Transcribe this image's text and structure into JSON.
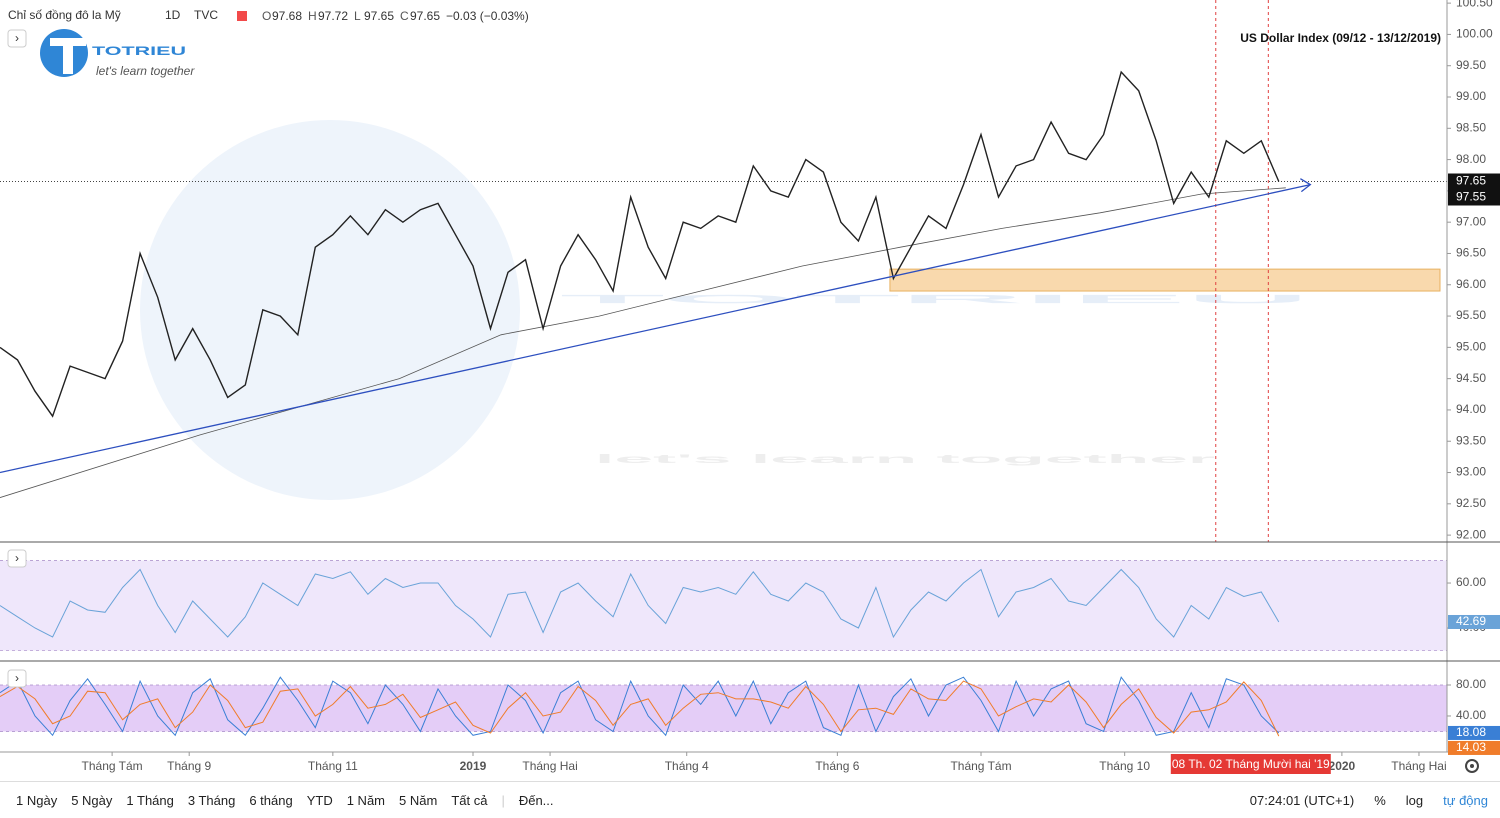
{
  "header": {
    "symbol": "Chỉ số đồng đô la Mỹ",
    "interval": "1D",
    "source": "TVC",
    "ohlc": [
      {
        "label": "O",
        "value": 97.68
      },
      {
        "label": "H",
        "value": 97.72
      },
      {
        "label": "L",
        "value": 97.65
      },
      {
        "label": "C",
        "value": 97.65
      }
    ],
    "change": "−0.03 (−0.03%)"
  },
  "logo": {
    "name": "TOTRIEU",
    "tagline": "let's learn together"
  },
  "chart_data": [
    {
      "type": "line",
      "title": "US Dollar Index (09/12 - 13/12/2019)",
      "xlim": [
        0,
        413
      ],
      "ylim": [
        91.89,
        100.55
      ],
      "xticks": [
        {
          "value": 32,
          "label": "Tháng Tám"
        },
        {
          "value": 54,
          "label": "Tháng 9"
        },
        {
          "value": 95,
          "label": "Tháng 11"
        },
        {
          "value": 135,
          "label": "2019"
        },
        {
          "value": 157,
          "label": "Tháng Hai"
        },
        {
          "value": 196,
          "label": "Tháng 4"
        },
        {
          "value": 239,
          "label": "Tháng 6"
        },
        {
          "value": 280,
          "label": "Tháng Tám"
        },
        {
          "value": 321,
          "label": "Tháng 10"
        },
        {
          "value": 383,
          "label": "2020"
        },
        {
          "value": 405,
          "label": "Tháng Hai"
        }
      ],
      "yticks": [
        {
          "value": 92,
          "label": "92.00"
        },
        {
          "value": 92.5,
          "label": "92.50"
        },
        {
          "value": 93,
          "label": "93.00"
        },
        {
          "value": 93.5,
          "label": "93.50"
        },
        {
          "value": 94,
          "label": "94.00"
        },
        {
          "value": 94.5,
          "label": "94.50"
        },
        {
          "value": 95,
          "label": "95.00"
        },
        {
          "value": 95.5,
          "label": "95.50"
        },
        {
          "value": 96,
          "label": "96.00"
        },
        {
          "value": 96.5,
          "label": "96.50"
        },
        {
          "value": 97,
          "label": "97.00"
        },
        {
          "value": 97.5,
          "label": "97.50"
        },
        {
          "value": 98,
          "label": "98.00"
        },
        {
          "value": 98.5,
          "label": "98.50"
        },
        {
          "value": 99,
          "label": "99.00"
        },
        {
          "value": 99.5,
          "label": "99.50"
        },
        {
          "value": 100,
          "label": "100.00"
        },
        {
          "value": 100.5,
          "label": "100.50"
        }
      ],
      "x": [
        0,
        5,
        10,
        15,
        20,
        25,
        30,
        35,
        40,
        45,
        50,
        55,
        60,
        65,
        70,
        75,
        80,
        85,
        90,
        95,
        100,
        105,
        110,
        115,
        120,
        125,
        130,
        135,
        140,
        145,
        150,
        155,
        160,
        165,
        170,
        175,
        180,
        185,
        190,
        195,
        200,
        205,
        210,
        215,
        220,
        225,
        230,
        235,
        240,
        245,
        250,
        255,
        260,
        265,
        270,
        275,
        280,
        285,
        290,
        295,
        300,
        305,
        310,
        315,
        320,
        325,
        330,
        335,
        340,
        345,
        350,
        355,
        360,
        365
      ],
      "price": {
        "color": "#222222",
        "values": [
          95.0,
          94.8,
          94.3,
          93.9,
          94.7,
          94.6,
          94.5,
          95.1,
          96.5,
          95.8,
          94.8,
          95.3,
          94.8,
          94.2,
          94.4,
          95.6,
          95.5,
          95.2,
          96.6,
          96.8,
          97.1,
          96.8,
          97.2,
          97.0,
          97.2,
          97.3,
          96.8,
          96.3,
          95.3,
          96.2,
          96.4,
          95.3,
          96.3,
          96.8,
          96.4,
          95.9,
          97.4,
          96.6,
          96.1,
          97.0,
          96.9,
          97.1,
          97.0,
          97.9,
          97.5,
          97.4,
          98.0,
          97.8,
          97.0,
          96.7,
          97.4,
          96.1,
          96.6,
          97.1,
          96.9,
          97.6,
          98.4,
          97.4,
          97.9,
          98.0,
          98.6,
          98.1,
          98.0,
          98.4,
          99.4,
          99.1,
          98.3,
          97.3,
          97.8,
          97.4,
          98.3,
          98.1,
          98.3,
          97.65
        ]
      },
      "ma": {
        "color": "#555555",
        "x": [
          0,
          57,
          114,
          143,
          171,
          229,
          257,
          286,
          314,
          343,
          367
        ],
        "values": [
          92.6,
          93.6,
          94.5,
          95.2,
          95.5,
          96.3,
          96.6,
          96.9,
          97.15,
          97.45,
          97.55
        ]
      },
      "trend": {
        "color": "#2d4fbf",
        "x": [
          0,
          374
        ],
        "values": [
          93.0,
          97.6
        ]
      },
      "zone": {
        "color": "#f7c98a",
        "x": [
          254,
          411
        ],
        "values": [
          95.9,
          96.25
        ]
      },
      "last_price": {
        "value": 97.65,
        "label": "97.65"
      },
      "ma_label": {
        "value": 97.55,
        "label": "97.55"
      },
      "markers": [
        347,
        362
      ],
      "cursor": {
        "x": 357,
        "label": "08 Th. 02 Tháng Mười hai '19"
      }
    },
    {
      "type": "line",
      "ylim": [
        25.8,
        76.9
      ],
      "yticks": [
        {
          "value": 40,
          "label": "40.00"
        },
        {
          "value": 60,
          "label": "60.00"
        }
      ],
      "band": [
        30,
        70
      ],
      "band_color": "#efe7fb",
      "color": "#6aa3d8",
      "values": [
        50,
        45,
        40,
        36,
        52,
        48,
        47,
        58,
        66,
        50,
        38,
        52,
        44,
        36,
        45,
        60,
        55,
        50,
        64,
        62,
        65,
        55,
        62,
        58,
        60,
        60,
        50,
        44,
        36,
        55,
        56,
        38,
        56,
        60,
        52,
        45,
        64,
        50,
        42,
        58,
        56,
        58,
        55,
        65,
        55,
        52,
        60,
        56,
        44,
        40,
        58,
        36,
        48,
        56,
        52,
        60,
        66,
        45,
        56,
        58,
        62,
        52,
        50,
        58,
        66,
        58,
        44,
        36,
        50,
        44,
        58,
        54,
        56,
        42.69
      ],
      "last": {
        "value": 42.69,
        "label": "42.69"
      }
    },
    {
      "type": "line",
      "ylim": [
        -6.5,
        105.8
      ],
      "yticks": [
        {
          "value": 40,
          "label": "40.00"
        },
        {
          "value": 80,
          "label": "80.00"
        }
      ],
      "band": [
        20,
        80
      ],
      "band_color": "#e4cdf7",
      "series": [
        {
          "color": "#3a7fd5",
          "values": [
            70,
            85,
            40,
            15,
            60,
            88,
            55,
            20,
            85,
            40,
            15,
            70,
            88,
            35,
            15,
            50,
            90,
            60,
            25,
            85,
            70,
            30,
            80,
            55,
            20,
            75,
            40,
            15,
            20,
            80,
            60,
            18,
            70,
            85,
            35,
            20,
            85,
            40,
            15,
            80,
            55,
            85,
            40,
            85,
            30,
            70,
            85,
            25,
            15,
            80,
            20,
            65,
            88,
            40,
            80,
            90,
            60,
            20,
            85,
            40,
            75,
            85,
            30,
            20,
            90,
            60,
            15,
            20,
            70,
            25,
            88,
            80,
            40,
            18.08
          ],
          "last": {
            "value": 18.08,
            "label": "18.08"
          }
        },
        {
          "color": "#f07c2a",
          "values": [
            65,
            78,
            62,
            30,
            40,
            72,
            70,
            35,
            55,
            62,
            25,
            45,
            80,
            60,
            25,
            32,
            72,
            75,
            40,
            55,
            78,
            50,
            55,
            68,
            38,
            48,
            58,
            28,
            18,
            50,
            70,
            40,
            45,
            78,
            60,
            28,
            55,
            62,
            28,
            50,
            68,
            70,
            62,
            62,
            58,
            50,
            78,
            55,
            20,
            48,
            50,
            42,
            75,
            62,
            60,
            85,
            75,
            40,
            52,
            62,
            58,
            80,
            58,
            25,
            55,
            75,
            38,
            18,
            45,
            48,
            58,
            84,
            60,
            14.03
          ],
          "last": {
            "value": 14.03,
            "label": "14.03"
          }
        }
      ]
    }
  ],
  "toolbar": {
    "ranges": [
      "1 Ngày",
      "5 Ngày",
      "1 Tháng",
      "3 Tháng",
      "6 tháng",
      "YTD",
      "1 Năm",
      "5 Năm",
      "Tất cả"
    ],
    "goto": "Đến...",
    "clock": "07:24:01 (UTC+1)",
    "options": [
      "%",
      "log",
      "tự động"
    ]
  }
}
